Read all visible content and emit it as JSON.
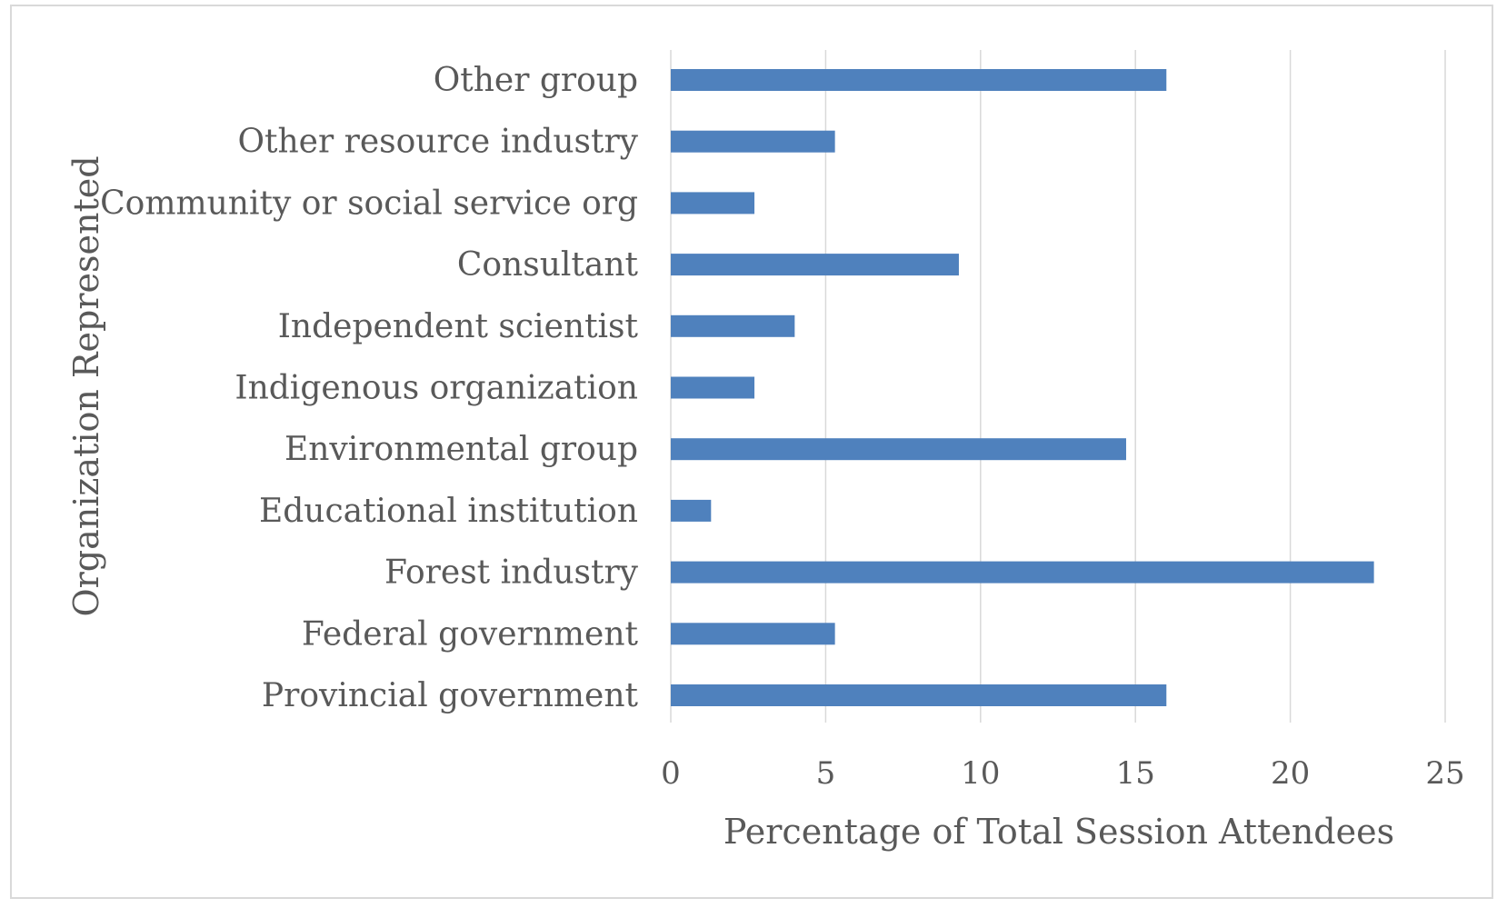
{
  "chart_data": {
    "type": "bar",
    "orientation": "horizontal",
    "title": "",
    "xlabel": "Percentage of Total Session Attendees",
    "ylabel": "Organization Represented",
    "xlim": [
      0,
      25
    ],
    "xticks": [
      "0",
      "5",
      "10",
      "15",
      "20",
      "25"
    ],
    "grid": "vertical",
    "legend": "none",
    "bar_color": "#4f81bd",
    "categories": [
      "Provincial government",
      "Federal government",
      "Forest industry",
      "Educational institution",
      "Environmental group",
      "Indigenous organization",
      "Independent scientist",
      "Consultant",
      "Community or social service org",
      "Other resource industry",
      "Other group"
    ],
    "values": [
      16.0,
      5.3,
      22.7,
      1.3,
      14.7,
      2.7,
      4.0,
      9.3,
      2.7,
      5.3,
      16.0
    ]
  }
}
